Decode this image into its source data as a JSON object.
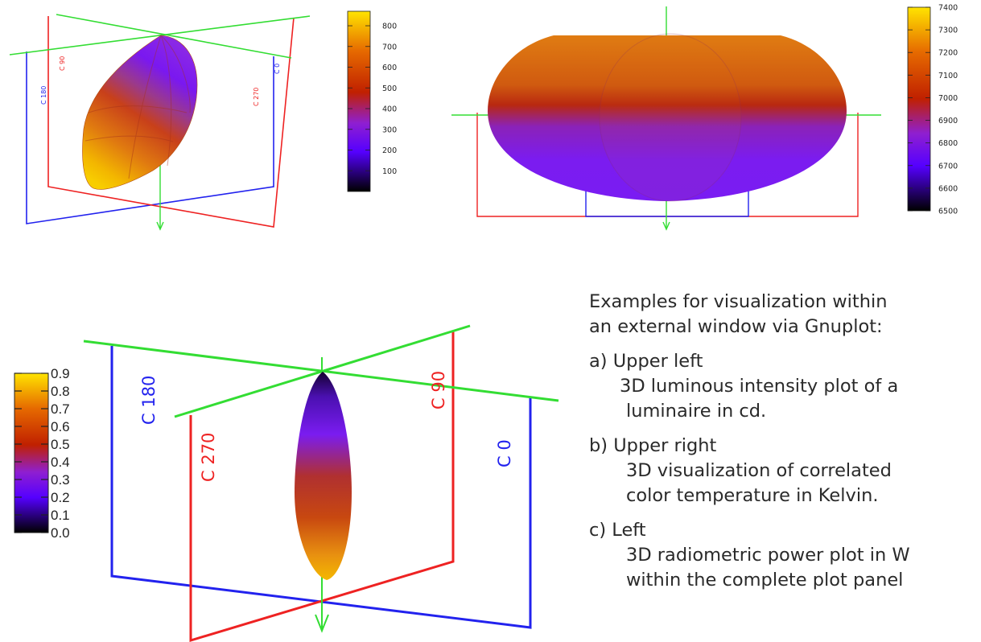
{
  "plot_a": {
    "plane_labels": [
      "C 90",
      "C 180",
      "C 270",
      "C 0"
    ],
    "colorbar": {
      "ticks": [
        "100",
        "200",
        "300",
        "400",
        "500",
        "600",
        "700",
        "800"
      ],
      "min": 0,
      "max": 870
    }
  },
  "plot_b": {
    "colorbar": {
      "ticks": [
        "6500",
        "6600",
        "6700",
        "6800",
        "6900",
        "7000",
        "7100",
        "7200",
        "7300",
        "7400"
      ],
      "min": 6500,
      "max": 7400
    }
  },
  "plot_c": {
    "plane_labels": [
      "C 180",
      "C 90",
      "C 270",
      "C 0"
    ],
    "colorbar": {
      "ticks": [
        "0.0",
        "0.1",
        "0.2",
        "0.3",
        "0.4",
        "0.5",
        "0.6",
        "0.7",
        "0.8",
        "0.9"
      ],
      "min": 0,
      "max": 0.9
    }
  },
  "colors": {
    "plane_c0_c180": "#2222ee",
    "plane_c90_c270": "#ee2222",
    "axis": "#33dd33",
    "colormap": [
      "#000000",
      "#5500ff",
      "#8f1fd0",
      "#c02000",
      "#e66a00",
      "#ffe400"
    ]
  },
  "chart_data": [
    {
      "type": "surface3d",
      "panel": "a",
      "colorbar_range": [
        0,
        870
      ],
      "colorbar_ticks": [
        100,
        200,
        300,
        400,
        500,
        600,
        700,
        800
      ]
    },
    {
      "type": "surface3d",
      "panel": "b",
      "colorbar_range": [
        6500,
        7400
      ],
      "colorbar_ticks": [
        6500,
        6600,
        6700,
        6800,
        6900,
        7000,
        7100,
        7200,
        7300,
        7400
      ]
    },
    {
      "type": "surface3d",
      "panel": "c",
      "colorbar_range": [
        0.0,
        0.9
      ],
      "colorbar_ticks": [
        0.0,
        0.1,
        0.2,
        0.3,
        0.4,
        0.5,
        0.6,
        0.7,
        0.8,
        0.9
      ]
    }
  ],
  "description": {
    "intro_line1": "Examples for visualization within",
    "intro_line2": "an external window via Gnuplot:",
    "a_head": "a)  Upper left",
    "a_line1": "3D luminous intensity plot of a",
    "a_line2": "luminaire in cd.",
    "b_head": "b)   Upper right",
    "b_line1": "3D visualization of correlated",
    "b_line2": "color temperature in Kelvin.",
    "c_head": "c)  Left",
    "c_line1": "3D radiometric power plot in W",
    "c_line2": "within the complete plot panel"
  }
}
